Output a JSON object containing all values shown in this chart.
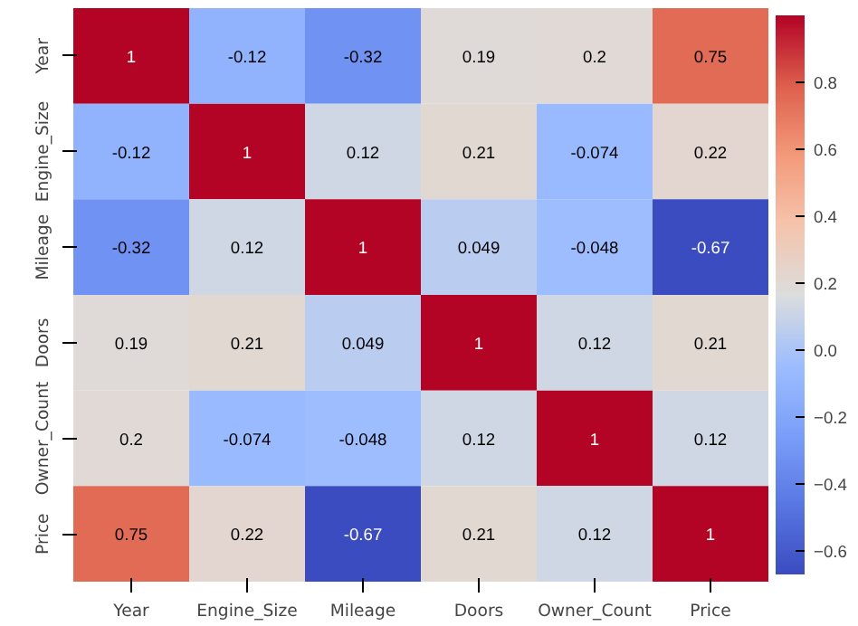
{
  "chart_data": {
    "type": "heatmap",
    "categories": [
      "Year",
      "Engine_Size",
      "Mileage",
      "Doors",
      "Owner_Count",
      "Price"
    ],
    "y_categories": [
      "Year",
      "Engine_Size",
      "Mileage",
      "Doors",
      "Owner_Count",
      "Price"
    ],
    "cells": [
      [
        1,
        -0.12,
        -0.32,
        0.19,
        0.2,
        0.75
      ],
      [
        -0.12,
        1,
        0.12,
        0.21,
        -0.074,
        0.22
      ],
      [
        -0.32,
        0.12,
        1,
        0.049,
        -0.048,
        -0.67
      ],
      [
        0.19,
        0.21,
        0.049,
        1,
        0.12,
        0.21
      ],
      [
        0.2,
        -0.074,
        -0.048,
        0.12,
        1,
        0.12
      ],
      [
        0.75,
        0.22,
        -0.67,
        0.21,
        0.12,
        1
      ]
    ],
    "data_labels": true,
    "clim": [
      -0.67,
      1
    ],
    "cticks": [
      {
        "value": -0.6,
        "label": "−0.6"
      },
      {
        "value": -0.4,
        "label": "−0.4"
      },
      {
        "value": -0.2,
        "label": "−0.2"
      },
      {
        "value": 0,
        "label": "0.0"
      },
      0.2,
      0.4,
      0.6,
      0.8
    ]
  }
}
